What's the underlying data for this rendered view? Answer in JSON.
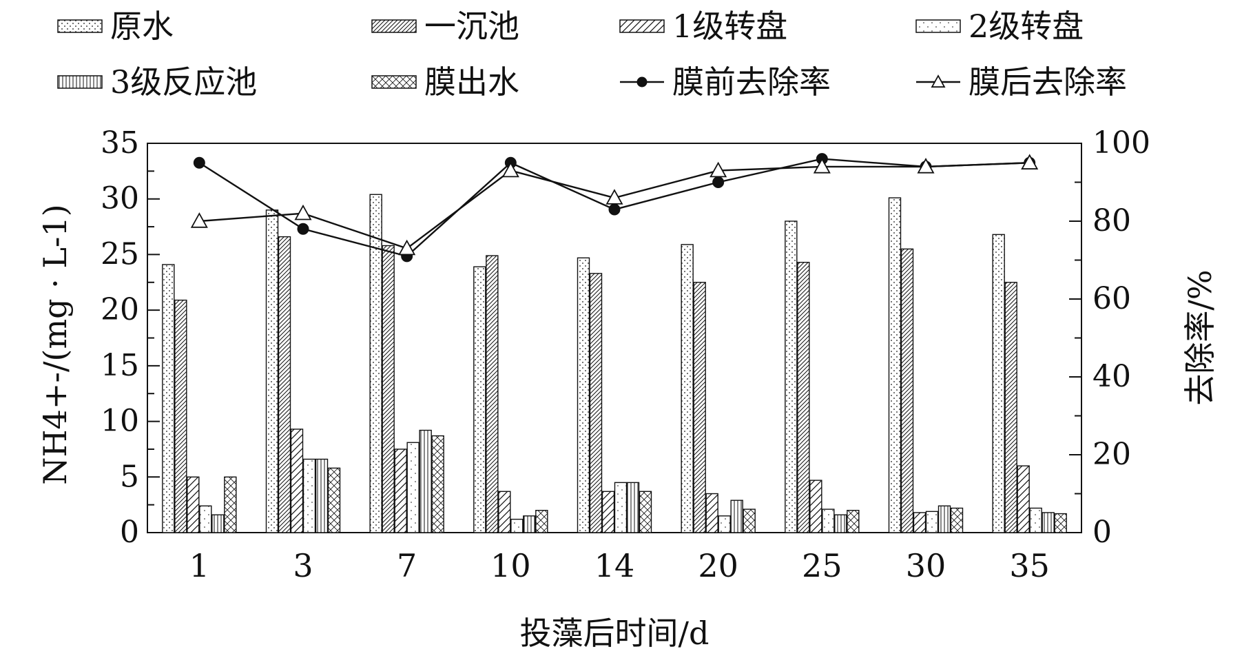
{
  "chart_data": {
    "type": "bar",
    "categories": [
      "1",
      "3",
      "7",
      "10",
      "14",
      "20",
      "25",
      "30",
      "35"
    ],
    "xlabel": "投藻后时间/d",
    "ylabel": "NH4+-/(mg · L-1)",
    "ylabel_right": "去除率/%",
    "ylim": [
      0,
      35
    ],
    "y2lim": [
      0,
      100
    ],
    "y_ticks": [
      0,
      5,
      10,
      15,
      20,
      25,
      30,
      35
    ],
    "y2_ticks": [
      0,
      20,
      40,
      60,
      80,
      100
    ],
    "grid": false,
    "legend_position": "top",
    "bar_series": [
      {
        "name": "原水",
        "pattern": "dots",
        "values": [
          24.1,
          29.0,
          30.4,
          23.9,
          24.7,
          25.9,
          28.0,
          30.1,
          26.8
        ]
      },
      {
        "name": "一沉池",
        "pattern": "diag-dense",
        "values": [
          20.9,
          26.6,
          25.8,
          24.9,
          23.3,
          22.5,
          24.3,
          25.5,
          22.5
        ]
      },
      {
        "name": "1级转盘",
        "pattern": "diag-wide",
        "values": [
          5.0,
          9.3,
          7.5,
          3.7,
          3.7,
          3.5,
          4.7,
          1.8,
          6.0
        ]
      },
      {
        "name": "2级转盘",
        "pattern": "sparse-dots",
        "values": [
          2.4,
          6.6,
          8.1,
          1.2,
          4.5,
          1.5,
          2.1,
          1.9,
          2.2
        ]
      },
      {
        "name": "3级反应池",
        "pattern": "vertical",
        "values": [
          1.6,
          6.6,
          9.2,
          1.5,
          4.5,
          2.9,
          1.6,
          2.4,
          1.8
        ]
      },
      {
        "name": "膜出水",
        "pattern": "cross",
        "values": [
          5.0,
          5.8,
          8.7,
          2.0,
          3.7,
          2.1,
          2.0,
          2.2,
          1.7
        ]
      }
    ],
    "line_series": [
      {
        "name": "膜前去除率",
        "marker": "filled-circle",
        "values": [
          95,
          78,
          71,
          95,
          83,
          90,
          96,
          94,
          95
        ]
      },
      {
        "name": "膜后去除率",
        "marker": "open-triangle",
        "values": [
          80,
          82,
          73,
          93,
          86,
          93,
          94,
          94,
          95
        ]
      }
    ],
    "colors": {
      "ink": "#111111",
      "background": "#ffffff",
      "bar_fill": "#ffffff"
    }
  }
}
